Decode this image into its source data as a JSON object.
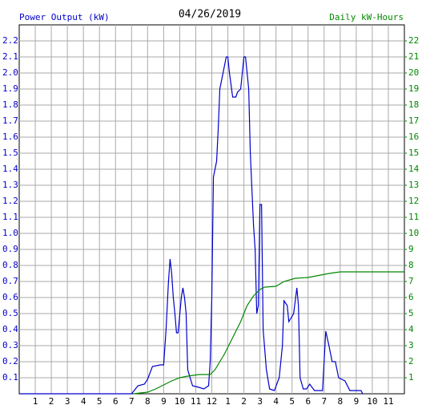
{
  "chart_data": {
    "type": "line",
    "title": "04/26/2019",
    "xlim": [
      0,
      24
    ],
    "xticks": [
      1,
      2,
      3,
      4,
      5,
      6,
      7,
      8,
      9,
      10,
      11,
      12,
      {
        "value": 13,
        "label": "1"
      },
      {
        "value": 14,
        "label": "2"
      },
      {
        "value": 15,
        "label": "3"
      },
      {
        "value": 16,
        "label": "4"
      },
      {
        "value": 17,
        "label": "5"
      },
      {
        "value": 18,
        "label": "6"
      },
      {
        "value": 19,
        "label": "7"
      },
      {
        "value": 20,
        "label": "8"
      },
      {
        "value": 21,
        "label": "9"
      },
      {
        "value": 22,
        "label": "10"
      },
      {
        "value": 23,
        "label": "11"
      }
    ],
    "ylim": [
      0,
      2.3
    ],
    "yticks": [
      0.1,
      0.2,
      0.3,
      0.4,
      0.5,
      0.6,
      0.7,
      0.8,
      0.9,
      {
        "value": 1,
        "label": "1.0"
      },
      1.1,
      1.2,
      1.3,
      1.4,
      1.5,
      1.6,
      1.7,
      1.8,
      1.9,
      {
        "value": 2,
        "label": "2.0"
      },
      2.1,
      2.2
    ],
    "y2lim": [
      0,
      23
    ],
    "y2ticks": [
      1,
      2,
      3,
      4,
      5,
      6,
      7,
      8,
      9,
      10,
      11,
      12,
      13,
      14,
      15,
      16,
      17,
      18,
      19,
      20,
      21,
      22
    ],
    "grid": true,
    "series": [
      {
        "name": "Power Output (kW)",
        "color": "#0000cc",
        "x": [
          0,
          7.0,
          7.4,
          7.8,
          8.0,
          8.3,
          8.8,
          9.0,
          9.15,
          9.3,
          9.4,
          9.5,
          9.6,
          9.7,
          9.8,
          9.9,
          10.1,
          10.2,
          10.3,
          10.4,
          10.5,
          10.8,
          11.2,
          11.5,
          11.8,
          11.9,
          12.0,
          12.1,
          12.3,
          12.4,
          12.5,
          12.7,
          12.9,
          13.0,
          13.1,
          13.3,
          13.5,
          13.6,
          13.8,
          14.0,
          14.1,
          14.3,
          14.4,
          14.6,
          14.7,
          14.8,
          14.9,
          15.0,
          15.1,
          15.2,
          15.4,
          15.6,
          15.9,
          16.2,
          16.4,
          16.5,
          16.7,
          16.8,
          17.1,
          17.3,
          17.4,
          17.5,
          17.7,
          17.9,
          18.1,
          18.4,
          18.9,
          19.1,
          19.3,
          19.5,
          19.7,
          19.9,
          20.3,
          20.6,
          21.3,
          21.4
        ],
        "values": [
          0,
          0,
          0.05,
          0.06,
          0.09,
          0.17,
          0.18,
          0.18,
          0.4,
          0.7,
          0.84,
          0.75,
          0.6,
          0.5,
          0.38,
          0.38,
          0.6,
          0.66,
          0.6,
          0.5,
          0.15,
          0.05,
          0.04,
          0.03,
          0.05,
          0.2,
          0.6,
          1.35,
          1.45,
          1.65,
          1.9,
          2.0,
          2.1,
          2.1,
          2.0,
          1.85,
          1.85,
          1.88,
          1.9,
          2.1,
          2.1,
          1.9,
          1.5,
          1.05,
          0.9,
          0.5,
          0.55,
          1.18,
          1.18,
          0.4,
          0.15,
          0.03,
          0.02,
          0.1,
          0.3,
          0.58,
          0.55,
          0.45,
          0.5,
          0.66,
          0.55,
          0.1,
          0.03,
          0.03,
          0.06,
          0.02,
          0.02,
          0.39,
          0.3,
          0.2,
          0.2,
          0.1,
          0.08,
          0.02,
          0.02,
          0
        ]
      },
      {
        "name": "Daily kW-Hours",
        "color": "#008800",
        "axis": "y2",
        "x": [
          7.1,
          8.0,
          8.5,
          9.1,
          9.5,
          10.0,
          10.5,
          11.2,
          11.9,
          12.2,
          12.8,
          13.3,
          13.8,
          14.2,
          14.6,
          15.0,
          15.3,
          16.0,
          16.5,
          17.2,
          18.0,
          19.3,
          20.0,
          24
        ],
        "values": [
          0,
          0.1,
          0.3,
          0.6,
          0.8,
          1.0,
          1.1,
          1.2,
          1.2,
          1.5,
          2.5,
          3.5,
          4.5,
          5.5,
          6.1,
          6.5,
          6.65,
          6.7,
          7.0,
          7.2,
          7.25,
          7.5,
          7.6,
          7.6
        ]
      }
    ]
  }
}
